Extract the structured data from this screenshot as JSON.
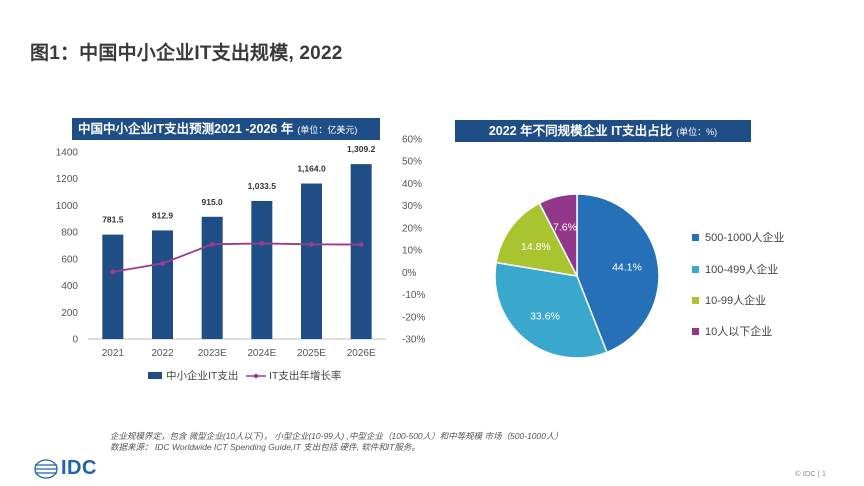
{
  "page": {
    "title": "图1：中国中小企业IT支出规模, 2022"
  },
  "left_chart": {
    "title": "中国中小企业IT支出预测2021 -2026 年",
    "unit": "(单位：亿美元)",
    "legend_bar": "中小企业IT支出",
    "legend_line": "IT支出年增长率"
  },
  "right_chart": {
    "title": "2022 年不同规模企业 IT支出占比",
    "unit": "(单位：%)"
  },
  "chart_data": [
    {
      "type": "bar",
      "title": "中国中小企业IT支出预测2021 -2026 年",
      "categories": [
        "2021",
        "2022",
        "2023E",
        "2024E",
        "2025E",
        "2026E"
      ],
      "series": [
        {
          "name": "中小企业IT支出",
          "type": "bar",
          "axis": "left",
          "values": [
            781.5,
            812.9,
            915.0,
            1033.5,
            1164.0,
            1309.2
          ],
          "labels": [
            "781.5",
            "812.9",
            "915.0",
            "1,033.5",
            "1,164.0",
            "1,309.2"
          ]
        },
        {
          "name": "IT支出年增长率",
          "type": "line",
          "axis": "right",
          "values": [
            0.2,
            4.0,
            12.6,
            13.0,
            12.6,
            12.5
          ]
        }
      ],
      "ylim_left": [
        0,
        1400
      ],
      "yticks_left": [
        "0",
        "200",
        "400",
        "600",
        "800",
        "1000",
        "1200",
        "1400"
      ],
      "ylim_right": [
        -30,
        60
      ],
      "yticks_right": [
        "-30%",
        "-20%",
        "-10%",
        "0%",
        "10%",
        "20%",
        "30%",
        "40%",
        "50%",
        "60%"
      ],
      "colors": {
        "bar": "#1f4e86",
        "line": "#9b3c8e"
      }
    },
    {
      "type": "pie",
      "title": "2022 年不同规模企业 IT支出占比",
      "labels": [
        "500-1000人企业",
        "100-499人企业",
        "10-99人企业",
        "10人以下企业"
      ],
      "values": [
        44.1,
        33.6,
        14.8,
        7.6
      ],
      "value_labels": [
        "44.1%",
        "33.6%",
        "14.8%",
        "7.6%"
      ],
      "colors": [
        "#2670b8",
        "#3aa8cc",
        "#a8c530",
        "#93378a"
      ]
    }
  ],
  "notes": {
    "line1": "企业规模界定，包含 微型企业(10人以下)， 小型企业(10-99人) ,中型企业（100-500人）和中等规模 市场（500-1000人）",
    "line2": "数据来源： IDC Worldwide ICT Spending Guide,IT 支出包括 硬件, 软件和IT服务。"
  },
  "footer": {
    "logo": "IDC",
    "copyright": "© IDC |",
    "page_number": "1"
  }
}
